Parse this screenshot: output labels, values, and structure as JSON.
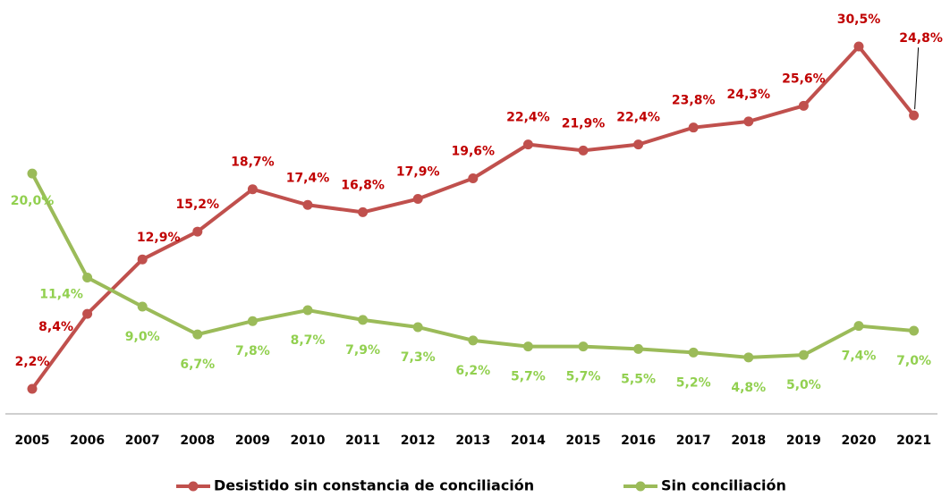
{
  "chart_data": {
    "type": "line",
    "categories": [
      "2005",
      "2006",
      "2007",
      "2008",
      "2009",
      "2010",
      "2011",
      "2012",
      "2013",
      "2014",
      "2015",
      "2016",
      "2017",
      "2018",
      "2019",
      "2020",
      "2021"
    ],
    "series": [
      {
        "name": "Desistido sin constancia de conciliación",
        "color": "#c0504d",
        "label_color": "#c00000",
        "values": [
          2.2,
          8.4,
          12.9,
          15.2,
          18.7,
          17.4,
          16.8,
          17.9,
          19.6,
          22.4,
          21.9,
          22.4,
          23.8,
          24.3,
          25.6,
          30.5,
          24.8
        ],
        "value_labels": [
          "2,2%",
          "8,4%",
          "12,9%",
          "15,2%",
          "18,7%",
          "17,4%",
          "16,8%",
          "17,9%",
          "19,6%",
          "22,4%",
          "21,9%",
          "22,4%",
          "23,8%",
          "24,3%",
          "25,6%",
          "30,5%",
          "24,8%"
        ]
      },
      {
        "name": "Sin conciliación",
        "color": "#9bbb59",
        "label_color": "#92d050",
        "values": [
          20.0,
          11.4,
          9.0,
          6.7,
          7.8,
          8.7,
          7.9,
          7.3,
          6.2,
          5.7,
          5.7,
          5.5,
          5.2,
          4.8,
          5.0,
          7.4,
          7.0
        ],
        "value_labels": [
          "20,0%",
          "11,4%",
          "9,0%",
          "6,7%",
          "7,8%",
          "8,7%",
          "7,9%",
          "7,3%",
          "6,2%",
          "5,7%",
          "5,7%",
          "5,5%",
          "5,2%",
          "4,8%",
          "5,0%",
          "7,4%",
          "7,0%"
        ]
      }
    ]
  }
}
